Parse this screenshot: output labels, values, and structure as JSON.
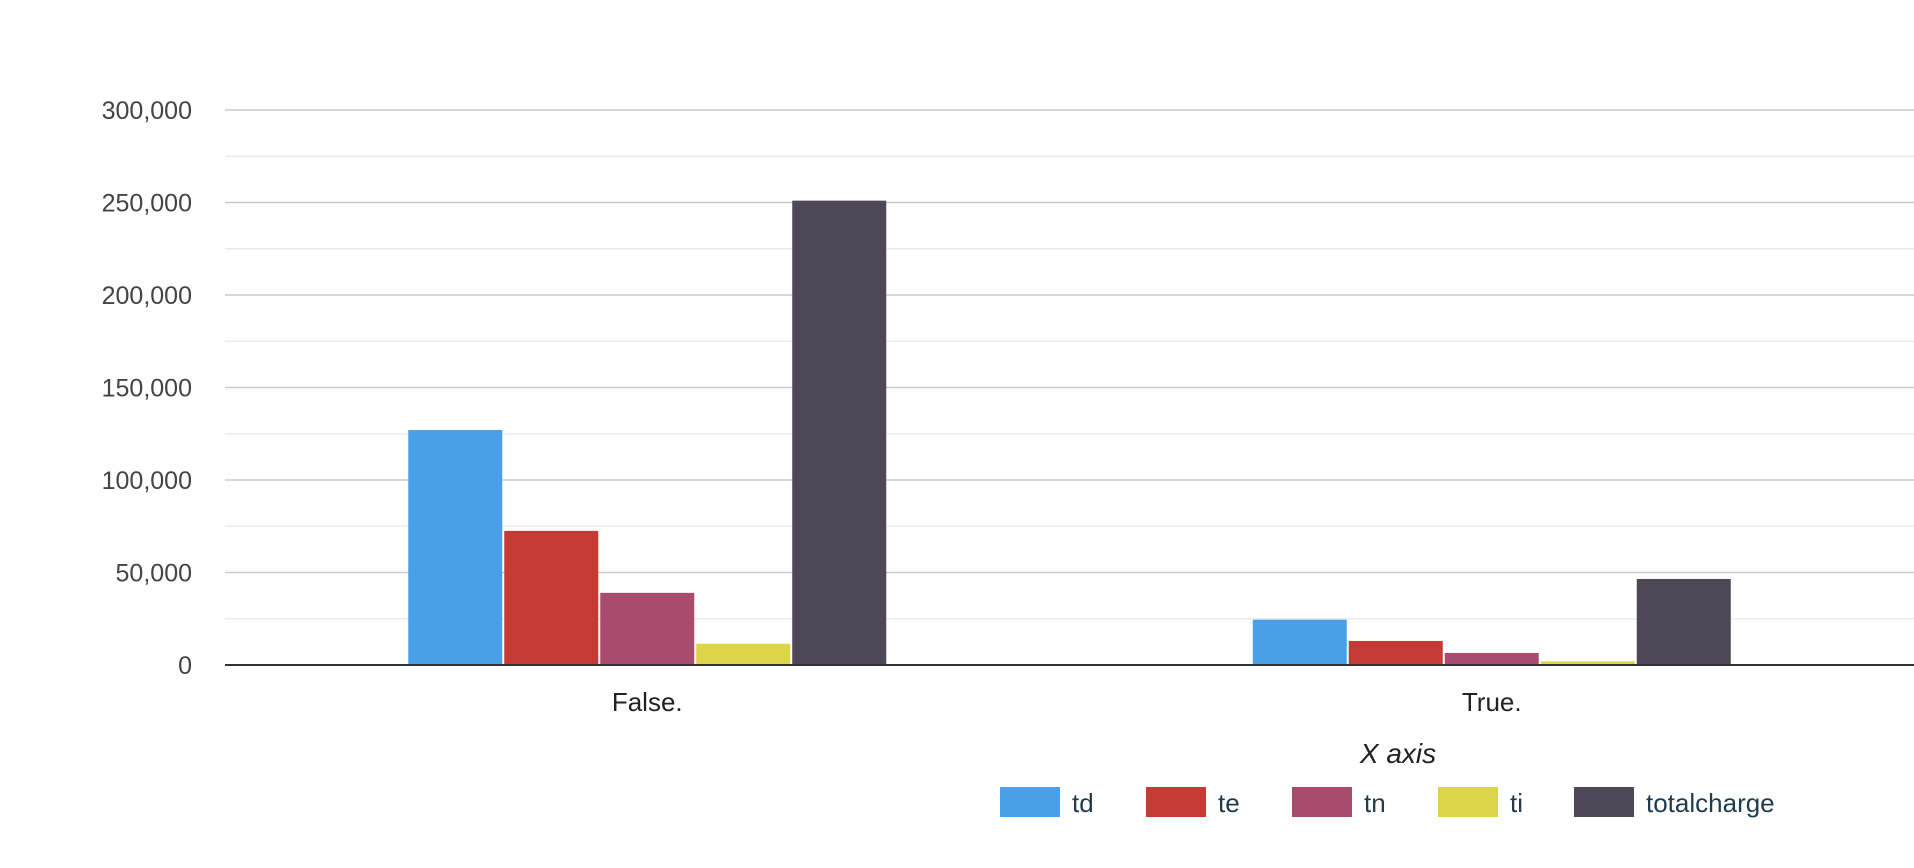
{
  "chart_data": {
    "type": "bar",
    "title": "",
    "xlabel": "X axis",
    "ylabel": "",
    "categories": [
      "False.",
      "True."
    ],
    "ylim": [
      0,
      300000
    ],
    "yticks": [
      0,
      50000,
      100000,
      150000,
      200000,
      250000,
      300000
    ],
    "ytick_labels": [
      "0",
      "50,000",
      "100,000",
      "150,000",
      "200,000",
      "250,000",
      "300,000"
    ],
    "grid": true,
    "legend_position": "bottom",
    "series": [
      {
        "name": "td",
        "color": "#4a9fe8",
        "values": [
          127000,
          24500
        ]
      },
      {
        "name": "te",
        "color": "#c63a35",
        "values": [
          72500,
          13000
        ]
      },
      {
        "name": "tn",
        "color": "#a94b6c",
        "values": [
          39000,
          6500
        ]
      },
      {
        "name": "ti",
        "color": "#dcd548",
        "values": [
          11500,
          2000
        ]
      },
      {
        "name": "totalcharge",
        "color": "#4e4756",
        "values": [
          251000,
          46500
        ]
      }
    ]
  }
}
